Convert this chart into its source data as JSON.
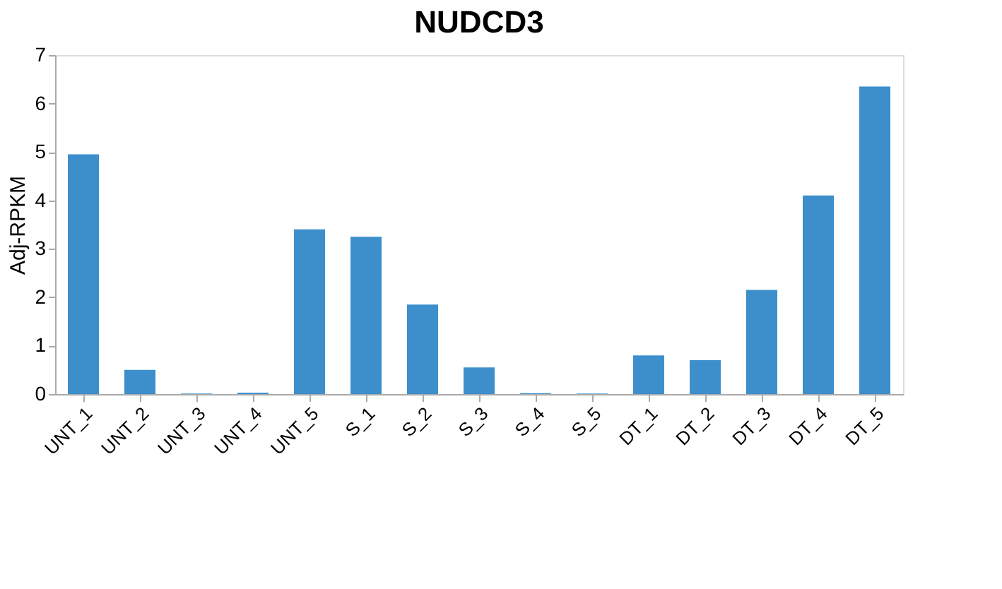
{
  "chart_data": {
    "type": "bar",
    "title": "NUDCD3",
    "ylabel": "Adj-RPKM",
    "categories": [
      "UNT_1",
      "UNT_2",
      "UNT_3",
      "UNT_4",
      "UNT_5",
      "S_1",
      "S_2",
      "S_3",
      "S_4",
      "S_5",
      "DT_1",
      "DT_2",
      "DT_3",
      "DT_4",
      "DT_5"
    ],
    "values": [
      4.95,
      0.5,
      0.01,
      0.03,
      3.4,
      3.25,
      1.85,
      0.55,
      0.02,
      0.01,
      0.8,
      0.7,
      2.15,
      4.1,
      6.35
    ],
    "color": "#3d8fcc",
    "ylim": [
      0,
      7
    ],
    "yticks": [
      0,
      1,
      2,
      3,
      4,
      5,
      6,
      7
    ],
    "grid": false
  }
}
